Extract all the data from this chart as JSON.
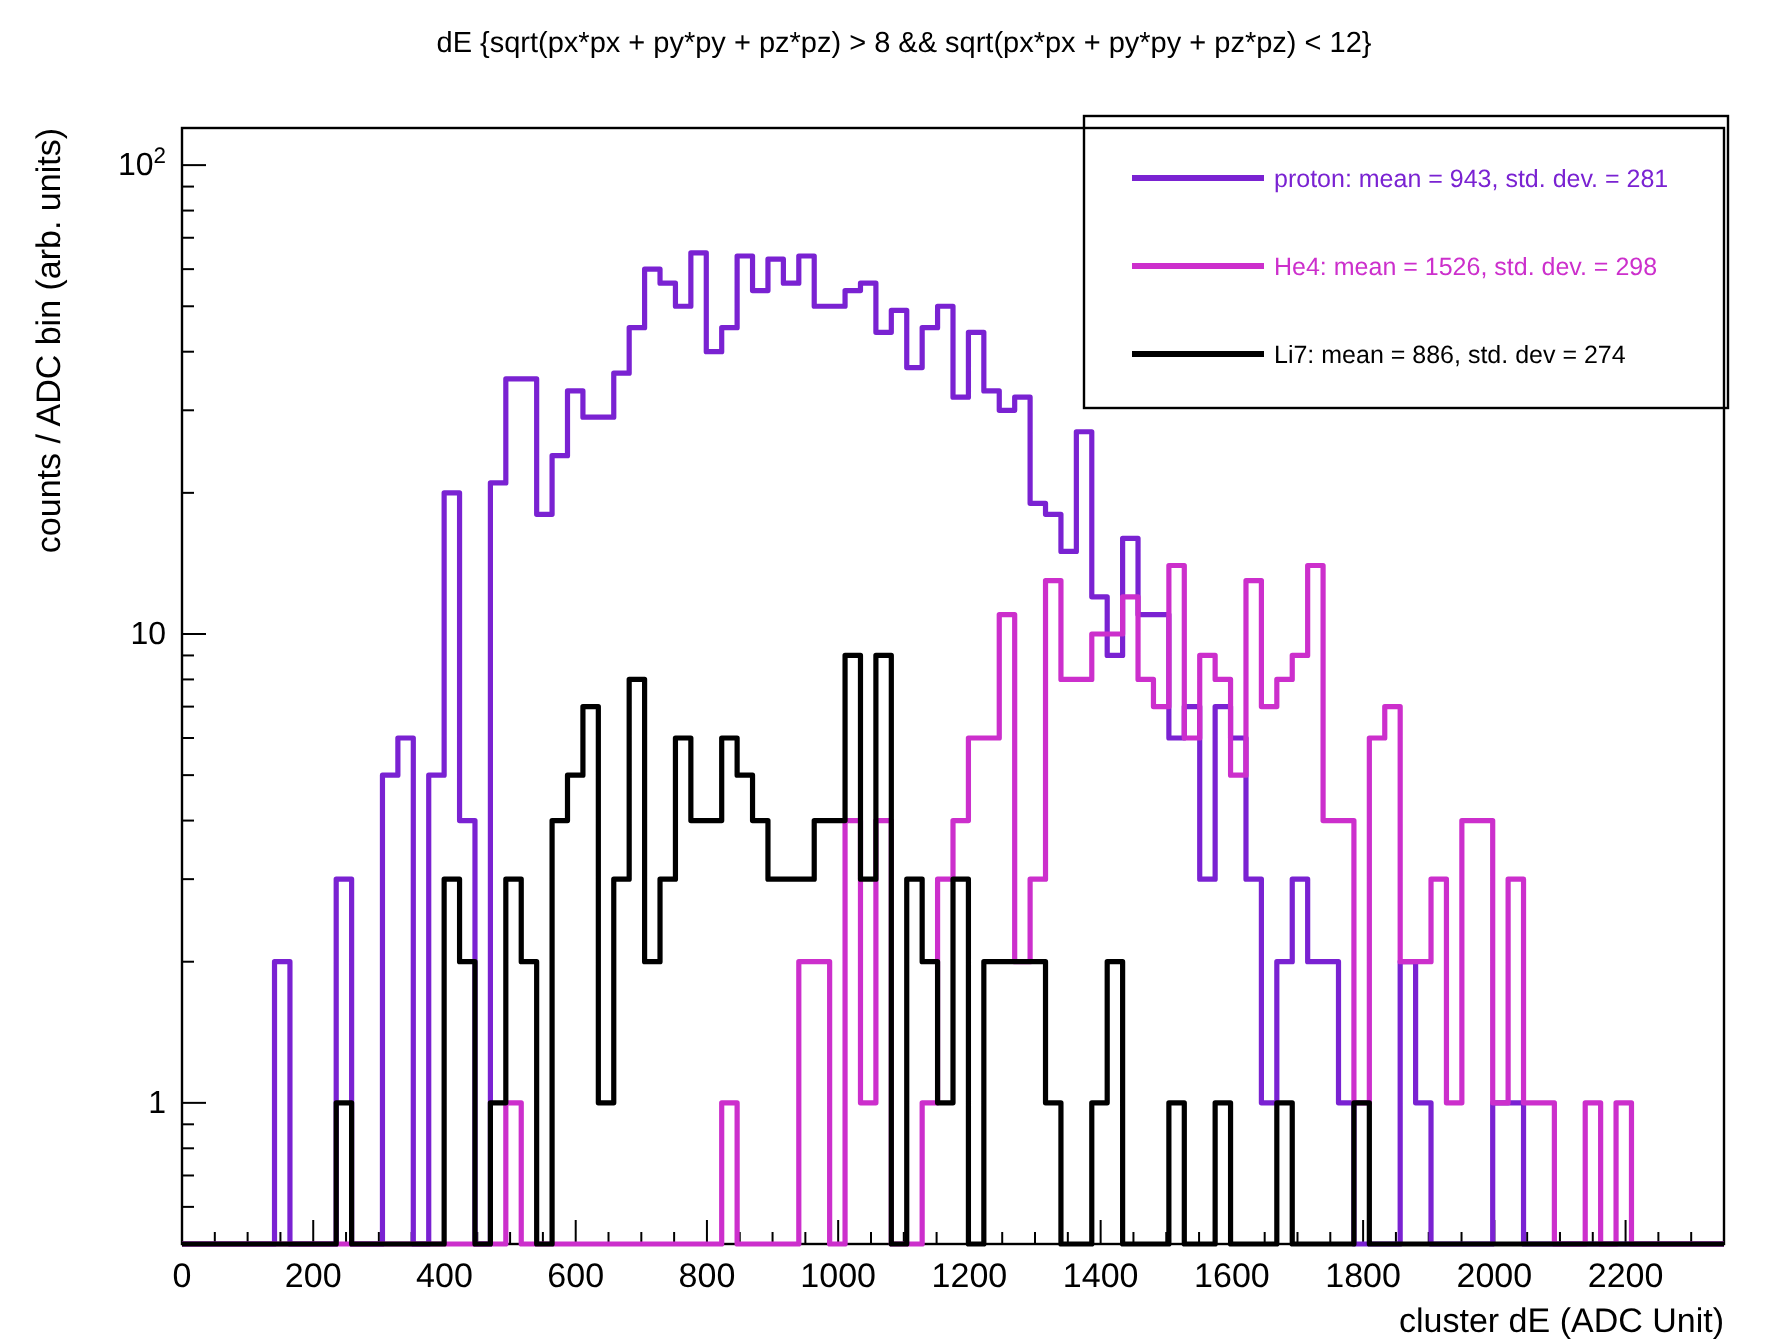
{
  "chart_data": {
    "type": "histogram",
    "title": "dE {sqrt(px*px + py*py + pz*pz) > 8 && sqrt(px*px + py*py + pz*pz) < 12}",
    "xlabel": "cluster dE (ADC Unit)",
    "ylabel": "counts / ADC bin (arb. units)",
    "bins": [
      0,
      23.5,
      47,
      70.5,
      94,
      117.5,
      141,
      164.5,
      188,
      211.5,
      235,
      258.5,
      282,
      305.5,
      329,
      352.5,
      376,
      399.5,
      423,
      446.5,
      470,
      493.5,
      517,
      540.5,
      564,
      587.5,
      611,
      634.5,
      658,
      681.5,
      705,
      728.5,
      752,
      775.5,
      799,
      822.5,
      846,
      869.5,
      893,
      916.5,
      940,
      963.5,
      987,
      1010.5,
      1034,
      1057.5,
      1081,
      1104.5,
      1128,
      1151.5,
      1175,
      1198.5,
      1222,
      1245.5,
      1269,
      1292.5,
      1316,
      1339.5,
      1363,
      1386.5,
      1410,
      1433.5,
      1457,
      1480.5,
      1504,
      1527.5,
      1551,
      1574.5,
      1598,
      1621.5,
      1645,
      1668.5,
      1692,
      1715.5,
      1739,
      1762.5,
      1786,
      1809.5,
      1833,
      1856.5,
      1880,
      1903.5,
      1927,
      1950.5,
      1974,
      1997.5,
      2021,
      2044.5,
      2068,
      2091.5,
      2115,
      2138.5,
      2162,
      2185.5,
      2209,
      2232.5,
      2256,
      2279.5,
      2303,
      2326.5,
      2350
    ],
    "series": [
      {
        "name": "proton: mean = 943, std. dev. = 281",
        "color": "#7a22d2",
        "values": [
          null,
          null,
          null,
          null,
          null,
          null,
          2,
          null,
          null,
          null,
          3,
          null,
          null,
          5,
          6,
          null,
          5,
          20,
          4,
          null,
          21,
          35,
          35,
          18,
          24,
          33,
          29,
          29,
          36,
          45,
          60,
          56,
          50,
          65,
          40,
          45,
          64,
          54,
          63,
          56,
          64,
          50,
          50,
          54,
          56,
          44,
          49,
          37,
          45,
          50,
          32,
          44,
          33,
          30,
          32,
          19,
          18,
          15,
          27,
          12,
          9,
          16,
          11,
          11,
          6,
          7,
          3,
          7,
          6,
          3,
          1,
          2,
          3,
          2,
          2,
          1,
          null,
          null,
          null,
          2,
          1,
          null,
          null,
          null,
          null,
          1,
          1,
          null,
          null,
          null,
          null,
          null,
          null,
          null,
          null,
          null,
          null,
          null,
          null,
          null
        ]
      },
      {
        "name": "He4: mean = 1526, std. dev. = 298",
        "color": "#cc2fcc",
        "values": [
          null,
          null,
          null,
          null,
          null,
          null,
          null,
          null,
          null,
          null,
          null,
          null,
          null,
          null,
          null,
          null,
          null,
          null,
          null,
          null,
          null,
          1,
          null,
          null,
          null,
          null,
          null,
          null,
          null,
          null,
          null,
          null,
          null,
          null,
          null,
          1,
          null,
          null,
          null,
          null,
          2,
          2,
          null,
          4,
          1,
          4,
          null,
          null,
          1,
          3,
          4,
          6,
          6,
          11,
          2,
          3,
          13,
          8,
          8,
          10,
          10,
          12,
          8,
          7,
          14,
          6,
          9,
          8,
          5,
          13,
          7,
          8,
          9,
          14,
          4,
          4,
          1,
          6,
          7,
          2,
          2,
          3,
          1,
          4,
          4,
          1,
          3,
          1,
          1,
          null,
          null,
          1,
          null,
          1,
          null,
          null,
          null,
          null,
          null,
          null
        ]
      },
      {
        "name": "Li7: mean = 886, std. dev = 274",
        "color": "#000000",
        "values": [
          null,
          null,
          null,
          null,
          null,
          null,
          null,
          null,
          null,
          null,
          1,
          null,
          null,
          null,
          null,
          null,
          null,
          3,
          2,
          null,
          1,
          3,
          2,
          null,
          4,
          5,
          7,
          1,
          3,
          8,
          2,
          3,
          6,
          4,
          4,
          6,
          5,
          4,
          3,
          3,
          3,
          4,
          4,
          9,
          3,
          9,
          null,
          3,
          2,
          1,
          3,
          null,
          2,
          2,
          2,
          2,
          1,
          null,
          null,
          1,
          2,
          null,
          null,
          null,
          1,
          null,
          null,
          1,
          null,
          null,
          null,
          1,
          null,
          null,
          null,
          null,
          1,
          null,
          null,
          null,
          null,
          null,
          null,
          null,
          null,
          null,
          null,
          null,
          null,
          null,
          null,
          null,
          null,
          null,
          null,
          null,
          null,
          null,
          null,
          null
        ]
      }
    ],
    "xlim": [
      0,
      2350
    ],
    "ylim": [
      0.5,
      120
    ],
    "log": "y",
    "xticks": [
      0,
      {
        "value": 50,
        "label": null
      },
      {
        "value": 100,
        "label": null
      },
      {
        "value": 150,
        "label": null
      },
      200,
      {
        "value": 250,
        "label": null
      },
      {
        "value": 300,
        "label": null
      },
      {
        "value": 350,
        "label": null
      },
      400,
      {
        "value": 450,
        "label": null
      },
      {
        "value": 500,
        "label": null
      },
      {
        "value": 550,
        "label": null
      },
      600,
      {
        "value": 650,
        "label": null
      },
      {
        "value": 700,
        "label": null
      },
      {
        "value": 750,
        "label": null
      },
      800,
      {
        "value": 850,
        "label": null
      },
      {
        "value": 900,
        "label": null
      },
      {
        "value": 950,
        "label": null
      },
      1000,
      {
        "value": 1050,
        "label": null
      },
      {
        "value": 1100,
        "label": null
      },
      {
        "value": 1150,
        "label": null
      },
      1200,
      {
        "value": 1250,
        "label": null
      },
      {
        "value": 1300,
        "label": null
      },
      {
        "value": 1350,
        "label": null
      },
      1400,
      {
        "value": 1450,
        "label": null
      },
      {
        "value": 1500,
        "label": null
      },
      {
        "value": 1550,
        "label": null
      },
      1600,
      {
        "value": 1650,
        "label": null
      },
      {
        "value": 1700,
        "label": null
      },
      {
        "value": 1750,
        "label": null
      },
      1800,
      {
        "value": 1850,
        "label": null
      },
      {
        "value": 1900,
        "label": null
      },
      {
        "value": 1950,
        "label": null
      },
      2000,
      {
        "value": 2050,
        "label": null
      },
      {
        "value": 2100,
        "label": null
      },
      {
        "value": 2150,
        "label": null
      },
      2200,
      {
        "value": 2250,
        "label": null
      },
      {
        "value": 2300,
        "label": null
      }
    ],
    "yticks": [
      {
        "value": 0.6,
        "label": null
      },
      {
        "value": 0.7,
        "label": null
      },
      {
        "value": 0.8,
        "label": null
      },
      {
        "value": 0.9,
        "label": null
      },
      1,
      {
        "value": 2,
        "label": null
      },
      {
        "value": 3,
        "label": null
      },
      {
        "value": 4,
        "label": null
      },
      {
        "value": 5,
        "label": null
      },
      {
        "value": 6,
        "label": null
      },
      {
        "value": 7,
        "label": null
      },
      {
        "value": 8,
        "label": null
      },
      {
        "value": 9,
        "label": null
      },
      10,
      {
        "value": 20,
        "label": null
      },
      {
        "value": 30,
        "label": null
      },
      {
        "value": 40,
        "label": null
      },
      {
        "value": 50,
        "label": null
      },
      {
        "value": 60,
        "label": null
      },
      {
        "value": 70,
        "label": null
      },
      {
        "value": 80,
        "label": null
      },
      {
        "value": 90,
        "label": null
      },
      {
        "value": 100,
        "label": "10$^{2}$"
      }
    ],
    "legend": "top right"
  }
}
